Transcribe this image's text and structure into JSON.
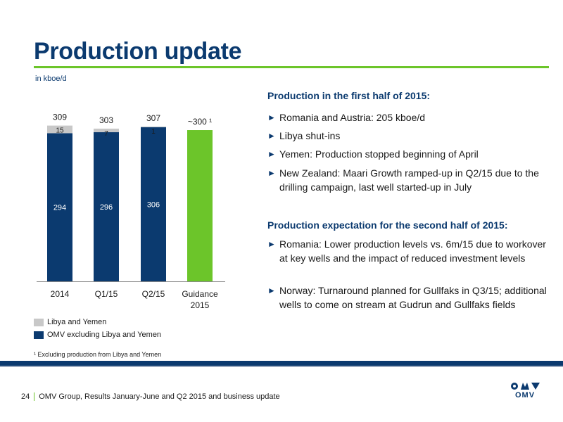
{
  "header": {
    "title": "Production update",
    "subtitle": "in kboe/d"
  },
  "chart_data": {
    "type": "bar",
    "stacked": true,
    "categories": [
      "2014",
      "Q1/15",
      "Q2/15",
      "Guidance 2015"
    ],
    "series": [
      {
        "name": "OMV excluding Libya and Yemen",
        "values": [
          294,
          296,
          306,
          null
        ],
        "color": "#0b3a6f"
      },
      {
        "name": "Libya and Yemen",
        "values": [
          15,
          7,
          1,
          null
        ],
        "color": "#c8c8c8"
      },
      {
        "name": "Guidance",
        "values": [
          null,
          null,
          null,
          300
        ],
        "color": "#6cc52a"
      }
    ],
    "totals": [
      "309",
      "303",
      "307",
      "~300 ¹"
    ],
    "ylim": [
      0,
      320
    ],
    "legend_position": "bottom-left"
  },
  "legend": {
    "libya": "Libya and Yemen",
    "omv": "OMV excluding Libya and Yemen",
    "libya_color": "#c8c8c8",
    "omv_color": "#0b3a6f"
  },
  "footnote": "¹ Excluding production from Libya and Yemen",
  "right_panel": {
    "h1_title": "Production in the first half of 2015:",
    "h1_items": [
      "Romania and Austria: 205 kboe/d",
      "Libya shut-ins",
      "Yemen: Production stopped beginning of April",
      "New Zealand: Maari Growth ramped-up in Q2/15 due to the drilling campaign, last well started-up in July"
    ],
    "h2_title": "Production expectation for the second half of 2015:",
    "h2_items": [
      "Romania: Lower production levels vs. 6m/15 due to workover at key wells and the impact of reduced investment levels",
      "Norway: Turnaround planned for Gullfaks in Q3/15; additional wells to come on stream at Gudrun and Gullfaks fields"
    ]
  },
  "footer": {
    "page": "24",
    "text": "OMV Group, Results January-June and Q2 2015 and business update"
  },
  "logo": {
    "text": "OMV"
  },
  "colors": {
    "brand_blue": "#0b3a6f",
    "accent_green": "#6cc52a",
    "grey": "#c8c8c8"
  }
}
